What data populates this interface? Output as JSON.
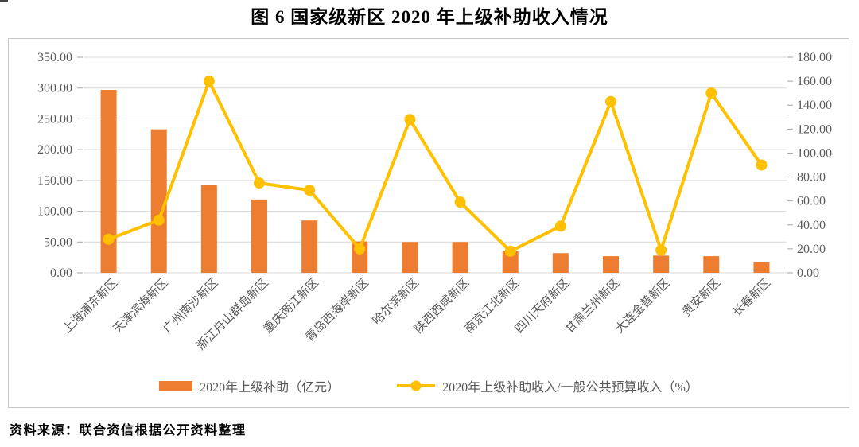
{
  "title": "图 6  国家级新区 2020 年上级补助收入情况",
  "source": "资料来源：联合资信根据公开资料整理",
  "colors": {
    "bar": "#ED7D31",
    "line": "#FFC000",
    "grid": "#D9D9D9",
    "tick": "#A6A6A6",
    "axis_text": "#595959",
    "box_border": "#C6C6C6"
  },
  "chart_data": {
    "type": "combo-bar-line",
    "title": "图 6  国家级新区 2020 年上级补助收入情况",
    "categories": [
      "上海浦东新区",
      "天津滨海新区",
      "广州南沙新区",
      "浙江舟山群岛新区",
      "重庆两江新区",
      "青岛西海岸新区",
      "哈尔滨新区",
      "陕西西咸新区",
      "南京江北新区",
      "四川天府新区",
      "甘肃兰州新区",
      "大连金普新区",
      "贵安新区",
      "长春新区"
    ],
    "series": [
      {
        "name": "2020年上级补助（亿元）",
        "type": "bar",
        "axis": "left",
        "values": [
          297,
          233,
          143,
          119,
          85,
          51,
          50,
          50,
          35,
          32,
          27,
          28,
          27,
          17
        ]
      },
      {
        "name": "2020年上级补助收入/一般公共预算收入（%）",
        "type": "line",
        "axis": "right",
        "values": [
          28,
          44,
          160,
          75,
          69,
          20,
          128,
          59,
          18,
          39,
          143,
          19,
          150,
          90
        ]
      }
    ],
    "left_axis": {
      "min": 0,
      "max": 350,
      "step": 50,
      "tick_labels": [
        "0.00",
        "50.00",
        "100.00",
        "150.00",
        "200.00",
        "250.00",
        "300.00",
        "350.00"
      ]
    },
    "right_axis": {
      "min": 0,
      "max": 180,
      "step": 20,
      "tick_labels": [
        "0.00",
        "20.00",
        "40.00",
        "60.00",
        "80.00",
        "100.00",
        "120.00",
        "140.00",
        "160.00",
        "180.00"
      ]
    },
    "grid": true,
    "legend_position": "bottom"
  }
}
